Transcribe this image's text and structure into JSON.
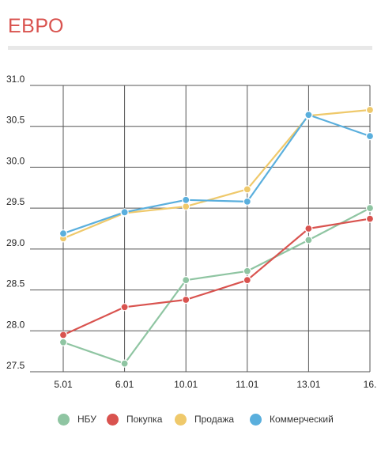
{
  "header": {
    "title": "ЕВРО"
  },
  "colors": {
    "title": "#d9534f",
    "grid": "#555555",
    "rule": "#e8e8e8"
  },
  "chart_data": {
    "type": "line",
    "title": "",
    "xlabel": "",
    "ylabel": "",
    "categories": [
      "5.01",
      "6.01",
      "10.01",
      "11.01",
      "13.01",
      "16."
    ],
    "y_ticks": [
      "31.0",
      "30.5",
      "30.0",
      "29.5",
      "29.0",
      "28.5",
      "28.0",
      "27.5"
    ],
    "ylim": [
      27.5,
      31.0
    ],
    "grid": true,
    "legend_position": "bottom",
    "series": [
      {
        "name": "НБУ",
        "color": "#8fc5a2",
        "values": [
          27.86,
          27.6,
          28.62,
          28.73,
          29.11,
          29.5
        ]
      },
      {
        "name": "Покупка",
        "color": "#d9534f",
        "values": [
          27.95,
          28.29,
          28.38,
          28.62,
          29.25,
          29.37
        ]
      },
      {
        "name": "Продажа",
        "color": "#efc96b",
        "values": [
          29.13,
          29.44,
          29.52,
          29.73,
          30.63,
          30.7
        ]
      },
      {
        "name": "Коммерческий",
        "color": "#5aafdd",
        "values": [
          29.19,
          29.45,
          29.6,
          29.58,
          30.64,
          30.38
        ]
      }
    ]
  }
}
